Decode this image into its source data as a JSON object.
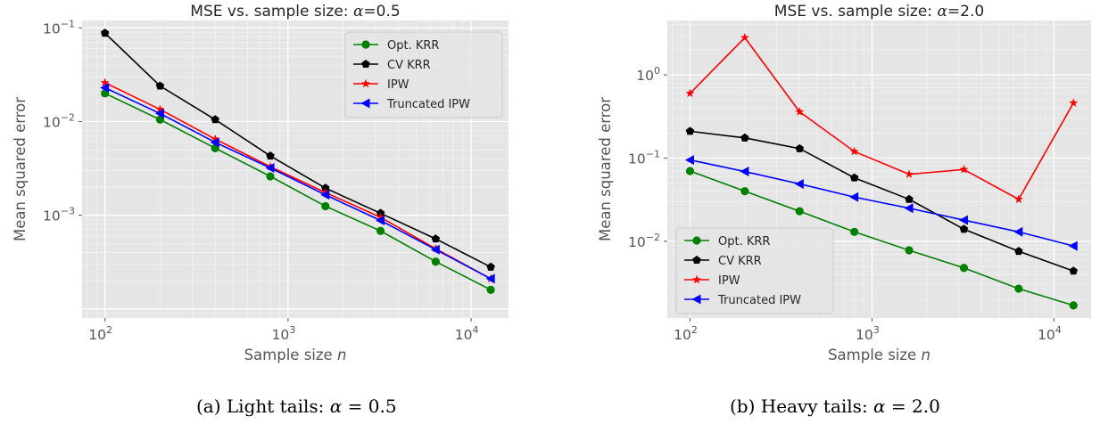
{
  "chart_data": [
    {
      "type": "line",
      "title_prefix": "MSE vs. sample size: ",
      "title_symbol": "α",
      "title_suffix": "=0.5",
      "xlabel_prefix": "Sample size ",
      "xlabel_symbol": "n",
      "ylabel": "Mean squared error",
      "xscale": "log",
      "yscale": "log",
      "xlim": [
        75,
        16000
      ],
      "ylim": [
        8e-05,
        0.12
      ],
      "x_ticks": [
        {
          "base": "10",
          "exp": "2",
          "value": 100
        },
        {
          "base": "10",
          "exp": "3",
          "value": 1000
        },
        {
          "base": "10",
          "exp": "4",
          "value": 10000
        }
      ],
      "y_ticks": [
        {
          "base": "10",
          "exp": "−3",
          "value": 0.001
        },
        {
          "base": "10",
          "exp": "−2",
          "value": 0.01
        },
        {
          "base": "10",
          "exp": "−1",
          "value": 0.1
        }
      ],
      "grid": true,
      "legend_position": "top-right",
      "x": [
        100,
        200,
        400,
        800,
        1600,
        3200,
        6400,
        12800
      ],
      "series": [
        {
          "name": "Opt. KRR",
          "color": "#008000",
          "marker": "circle",
          "values": [
            0.02,
            0.0105,
            0.0052,
            0.0026,
            0.00125,
            0.00068,
            0.00032,
            0.00016
          ]
        },
        {
          "name": "CV KRR",
          "color": "#000000",
          "marker": "pentagon",
          "values": [
            0.088,
            0.024,
            0.0105,
            0.0043,
            0.00195,
            0.00105,
            0.00056,
            0.00028
          ]
        },
        {
          "name": "IPW",
          "color": "#ff0000",
          "marker": "star",
          "values": [
            0.026,
            0.0135,
            0.0065,
            0.0033,
            0.00175,
            0.00095,
            0.00044,
            0.00021
          ]
        },
        {
          "name": "Truncated IPW",
          "color": "#0000ff",
          "marker": "triangle-left",
          "values": [
            0.023,
            0.0122,
            0.006,
            0.0032,
            0.00165,
            0.00088,
            0.00043,
            0.00021
          ]
        }
      ],
      "caption": {
        "prefix": "(a) Light tails: ",
        "symbol": "α",
        "suffix": " = 0.5"
      }
    },
    {
      "type": "line",
      "title_prefix": "MSE vs. sample size: ",
      "title_symbol": "α",
      "title_suffix": "=2.0",
      "xlabel_prefix": "Sample size ",
      "xlabel_symbol": "n",
      "ylabel": "Mean squared error",
      "xscale": "log",
      "yscale": "log",
      "xlim": [
        75,
        16000
      ],
      "ylim": [
        0.0012,
        4.5
      ],
      "x_ticks": [
        {
          "base": "10",
          "exp": "2",
          "value": 100
        },
        {
          "base": "10",
          "exp": "3",
          "value": 1000
        },
        {
          "base": "10",
          "exp": "4",
          "value": 10000
        }
      ],
      "y_ticks": [
        {
          "base": "10",
          "exp": "−2",
          "value": 0.01
        },
        {
          "base": "10",
          "exp": "−1",
          "value": 0.1
        },
        {
          "base": "10",
          "exp": "0",
          "value": 1
        }
      ],
      "grid": true,
      "legend_position": "lower-left",
      "x": [
        100,
        200,
        400,
        800,
        1600,
        3200,
        6400,
        12800
      ],
      "series": [
        {
          "name": "Opt. KRR",
          "color": "#008000",
          "marker": "circle",
          "values": [
            0.07,
            0.04,
            0.023,
            0.013,
            0.0078,
            0.0048,
            0.0027,
            0.0017
          ]
        },
        {
          "name": "CV KRR",
          "color": "#000000",
          "marker": "pentagon",
          "values": [
            0.21,
            0.175,
            0.13,
            0.058,
            0.032,
            0.014,
            0.0076,
            0.0044
          ]
        },
        {
          "name": "IPW",
          "color": "#ff0000",
          "marker": "star",
          "values": [
            0.6,
            2.8,
            0.36,
            0.12,
            0.064,
            0.073,
            0.032,
            0.46
          ]
        },
        {
          "name": "Truncated IPW",
          "color": "#0000ff",
          "marker": "triangle-left",
          "values": [
            0.095,
            0.069,
            0.049,
            0.034,
            0.025,
            0.018,
            0.013,
            0.0088
          ]
        }
      ],
      "caption": {
        "prefix": "(b) Heavy tails: ",
        "symbol": "α",
        "suffix": " = 2.0"
      }
    }
  ]
}
